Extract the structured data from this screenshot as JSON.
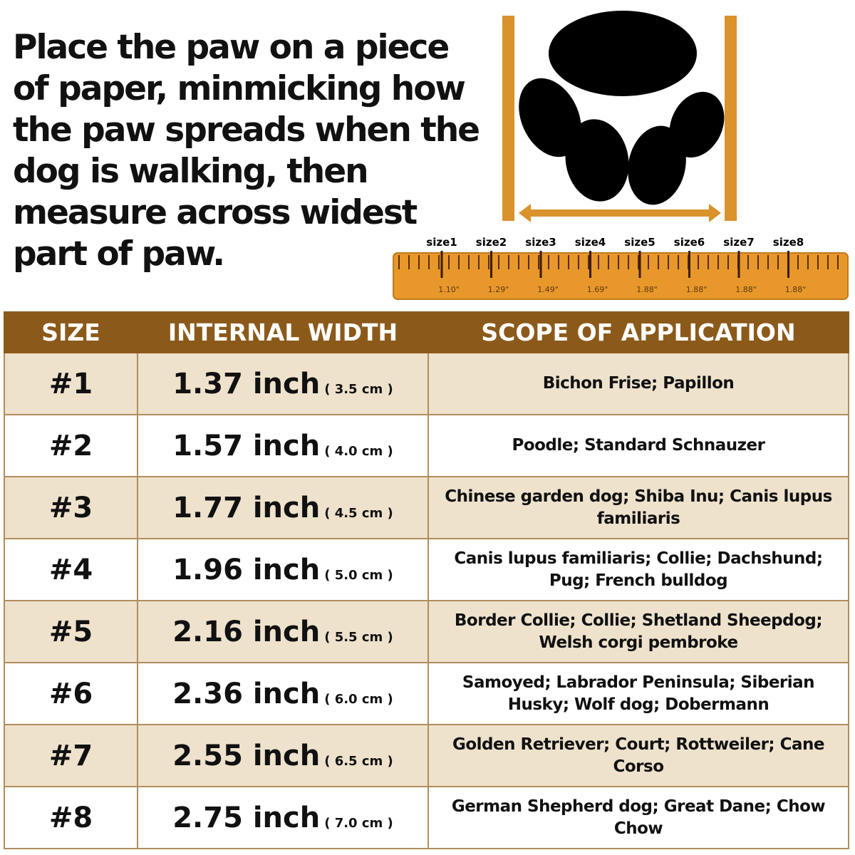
{
  "instruction": "Place the paw on a piece of paper, minmicking how the paw spreads when the dog is walking, then measure across widest part of paw.",
  "colors": {
    "header": "#8b5a1b",
    "ruler": "#e8972a",
    "row_alt": "#efe2cc"
  },
  "ruler": {
    "sizes": [
      "size1",
      "size2",
      "size3",
      "size4",
      "size5",
      "size6",
      "size7",
      "size8"
    ],
    "values": [
      "1.10\"",
      "1.29\"",
      "1.49\"",
      "1.69\"",
      "1.88\"",
      "1.88\"",
      "1.88\"",
      "1.88\""
    ]
  },
  "table": {
    "headers": [
      "SIZE",
      "INTERNAL WIDTH",
      "SCOPE OF APPLICATION"
    ],
    "rows": [
      {
        "size": "#1",
        "inch": "1.37 inch",
        "cm": "( 3.5 cm )",
        "scope": "Bichon Frise; Papillon"
      },
      {
        "size": "#2",
        "inch": "1.57 inch",
        "cm": "( 4.0 cm )",
        "scope": "Poodle; Standard Schnauzer"
      },
      {
        "size": "#3",
        "inch": "1.77 inch",
        "cm": "( 4.5 cm )",
        "scope": "Chinese garden dog; Shiba Inu; Canis lupus familiaris"
      },
      {
        "size": "#4",
        "inch": "1.96 inch",
        "cm": "( 5.0 cm )",
        "scope": "Canis lupus familiaris; Collie; Dachshund; Pug; French bulldog"
      },
      {
        "size": "#5",
        "inch": "2.16 inch",
        "cm": "( 5.5 cm )",
        "scope": "Border Collie; Collie; Shetland Sheepdog; Welsh corgi pembroke"
      },
      {
        "size": "#6",
        "inch": "2.36 inch",
        "cm": "( 6.0 cm )",
        "scope": "Samoyed; Labrador Peninsula; Siberian Husky; Wolf dog; Dobermann"
      },
      {
        "size": "#7",
        "inch": "2.55 inch",
        "cm": "( 6.5 cm )",
        "scope": "Golden Retriever; Court; Rottweiler; Cane Corso"
      },
      {
        "size": "#8",
        "inch": "2.75 inch",
        "cm": "( 7.0 cm )",
        "scope": "German Shepherd dog; Great Dane; Chow Chow"
      }
    ]
  }
}
